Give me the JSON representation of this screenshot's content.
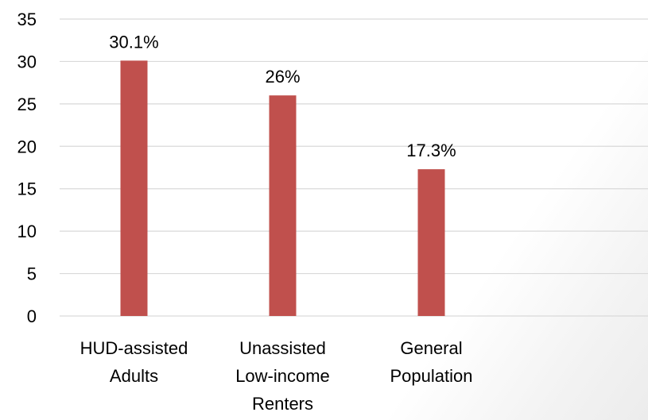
{
  "chart_data": {
    "type": "bar",
    "title": "",
    "xlabel": "",
    "ylabel": "",
    "categories": [
      [
        "HUD-assisted",
        "Adults"
      ],
      [
        "Unassisted",
        "Low-income",
        "Renters"
      ],
      [
        "General",
        "Population"
      ]
    ],
    "series": [
      {
        "values": [
          30.1,
          26,
          17.3
        ],
        "data_labels": [
          "30.1%",
          "26%",
          "17.3%"
        ],
        "color": "#c0504d"
      }
    ],
    "ylim": [
      0,
      35
    ],
    "yticks": [
      0,
      5,
      10,
      15,
      20,
      25,
      30,
      35
    ],
    "grid": true,
    "legend": "none"
  },
  "style": {
    "bar_color": "#c0504d",
    "grid_color": "#d9d9d9",
    "axis_color": "#d9d9d9",
    "text_color": "#000000"
  }
}
